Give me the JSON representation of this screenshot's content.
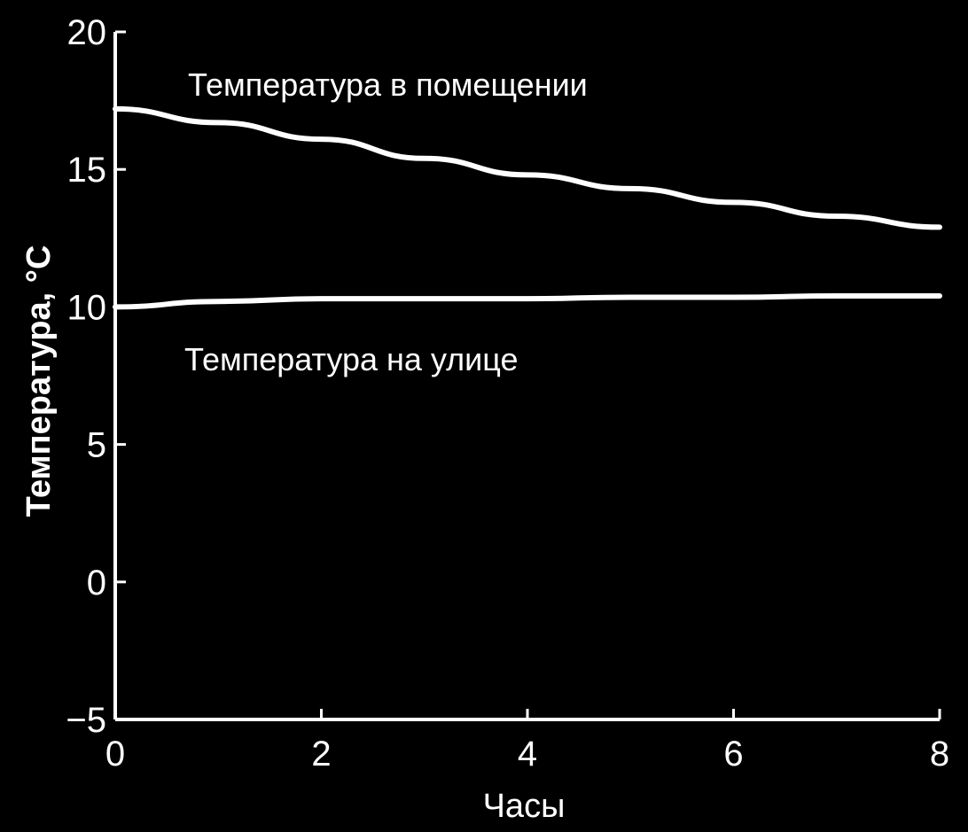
{
  "chart_data": {
    "type": "line",
    "title": "",
    "xlabel": "Часы",
    "ylabel": "Температура, °C",
    "xlim": [
      0,
      8
    ],
    "ylim": [
      -5,
      20
    ],
    "x_ticks": [
      0,
      2,
      4,
      6,
      8
    ],
    "y_ticks": [
      -5,
      0,
      5,
      10,
      15,
      20
    ],
    "x_tick_labels": [
      "0",
      "2",
      "4",
      "6",
      "8"
    ],
    "y_tick_labels": [
      "−5",
      "0",
      "5",
      "10",
      "15",
      "20"
    ],
    "grid": false,
    "legend": "none",
    "series": [
      {
        "name": "Температура в помещении",
        "x": [
          0,
          1,
          2,
          3,
          4,
          5,
          6,
          7,
          8
        ],
        "y": [
          17.2,
          16.7,
          16.1,
          15.4,
          14.8,
          14.3,
          13.8,
          13.3,
          12.9
        ]
      },
      {
        "name": "Температура на улице",
        "x": [
          0,
          1,
          2,
          3,
          4,
          5,
          6,
          7,
          8
        ],
        "y": [
          10.0,
          10.2,
          10.3,
          10.3,
          10.3,
          10.35,
          10.35,
          10.4,
          10.4
        ]
      }
    ],
    "line_color": "#ffffff",
    "background_color": "#000000"
  }
}
